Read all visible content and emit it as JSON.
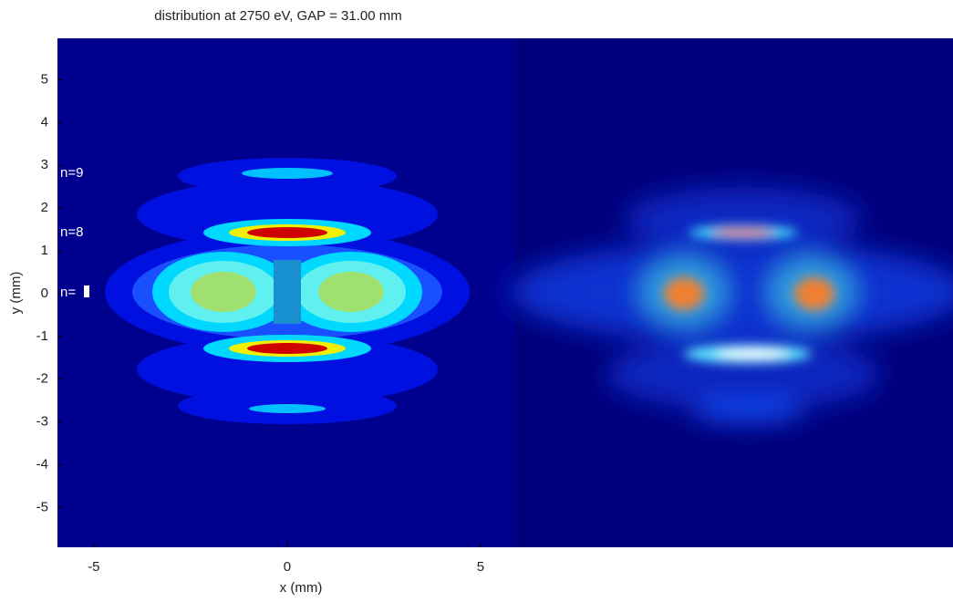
{
  "chart_data": {
    "type": "image",
    "title": "distribution at 2750 eV, GAP = 31.00 mm",
    "x_label": "x (mm)",
    "y_label": "y (mm)",
    "xlim": [
      -5.94,
      5.85
    ],
    "ylim": [
      -5.93,
      5.97
    ],
    "xticks": [
      -5,
      0,
      5
    ],
    "yticks": [
      -5,
      -4,
      -3,
      -2,
      -1,
      0,
      1,
      2,
      3,
      4,
      5
    ],
    "annotations": [
      "n=9",
      "n=8",
      "n="
    ]
  }
}
